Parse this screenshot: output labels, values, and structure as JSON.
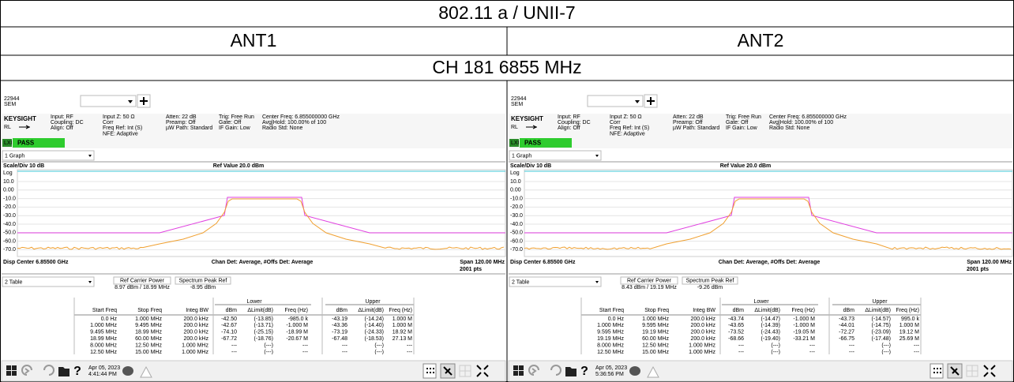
{
  "title": "802.11 a / UNII-7",
  "antennas": [
    "ANT1",
    "ANT2"
  ],
  "channel": "CH 181 6855 MHz",
  "panels": [
    {
      "screen_id": "22944",
      "mode": "SEM",
      "brand": "KEYSIGHT",
      "rl": "RL",
      "lxi": "LXI",
      "status": "PASS",
      "info": [
        [
          "Input: RF",
          "Coupling: DC",
          "Align: Off"
        ],
        [
          "Input Z: 50 Ω",
          "Corr",
          "Freq Ref: Int (S)",
          "NFE: Adaptive"
        ],
        [
          "Atten: 22 dB",
          "Preamp: Off",
          "µW Path: Standard"
        ],
        [
          "Trig: Free Run",
          "Gate: Off",
          "IF Gain: Low"
        ],
        [
          "Center Freq: 6.855000000 GHz",
          "Avg|Hold: 100.00% of 100",
          "Radio Std: None"
        ]
      ],
      "graph_menu": "1 Graph",
      "scale": "Scale/Div 10 dB",
      "ref_value": "Ref Value 20.0 dBm",
      "log": "Log",
      "y_axis": [
        "10.0",
        "0.00",
        "-10.0",
        "-20.0",
        "-30.0",
        "-40.0",
        "-50.0",
        "-60.0",
        "-70.0"
      ],
      "disp_center": "Disp Center 6.85500 GHz",
      "detector": "Chan Det: Average, #Offs Det: Average",
      "span": "Span 120.00 MHz",
      "points": "2001 pts",
      "table_menu": "2 Table",
      "ref_carrier_label": "Ref Carrier Power",
      "ref_carrier_value": "8.97 dBm / 18.99 MHz",
      "peak_ref_label": "Spectrum Peak Ref",
      "peak_ref_value": "-8.95 dBm",
      "table": {
        "groups": [
          "Lower",
          "Upper"
        ],
        "header": [
          "Start Freq",
          "Stop Freq",
          "Integ BW",
          "dBm",
          "ΔLimit(dB)",
          "Freq (Hz)",
          "dBm",
          "ΔLimit(dB)",
          "Freq (Hz)"
        ],
        "rows": [
          [
            "0.0 Hz",
            "1.000 MHz",
            "200.0 kHz",
            "-42.50",
            "(-13.85)",
            "-985.0 k",
            "-43.19",
            "(-14.24)",
            "1.000 M"
          ],
          [
            "1.000 MHz",
            "9.495 MHz",
            "200.0 kHz",
            "-42.67",
            "(-13.71)",
            "-1.000 M",
            "-43.36",
            "(-14.40)",
            "1.000 M"
          ],
          [
            "9.495 MHz",
            "18.99 MHz",
            "200.0 kHz",
            "-74.10",
            "(-25.15)",
            "-18.99 M",
            "-73.19",
            "(-24.33)",
            "18.92 M"
          ],
          [
            "18.99 MHz",
            "60.00 MHz",
            "200.0 kHz",
            "-67.72",
            "(-18.76)",
            "-20.67 M",
            "-67.48",
            "(-18.53)",
            "27.13 M"
          ],
          [
            "8.000 MHz",
            "12.50 MHz",
            "1.000 MHz",
            "---",
            "(---)",
            "---",
            "---",
            "(---)",
            "---"
          ],
          [
            "12.50 MHz",
            "15.00 MHz",
            "1.000 MHz",
            "---",
            "(---)",
            "---",
            "---",
            "(---)",
            "---"
          ]
        ]
      },
      "help": "?",
      "date": "Apr 05, 2023",
      "time": "4:41:44 PM"
    },
    {
      "screen_id": "22944",
      "mode": "SEM",
      "brand": "KEYSIGHT",
      "rl": "RL",
      "lxi": "LXI",
      "status": "PASS",
      "info": [
        [
          "Input: RF",
          "Coupling: DC",
          "Align: Off"
        ],
        [
          "Input Z: 50 Ω",
          "Corr",
          "Freq Ref: Int (S)",
          "NFE: Adaptive"
        ],
        [
          "Atten: 22 dB",
          "Preamp: Off",
          "µW Path: Standard"
        ],
        [
          "Trig: Free Run",
          "Gate: Off",
          "IF Gain: Low"
        ],
        [
          "Center Freq: 6.855000000 GHz",
          "Avg|Hold: 100.00% of 100",
          "Radio Std: None"
        ]
      ],
      "graph_menu": "1 Graph",
      "scale": "Scale/Div 10 dB",
      "ref_value": "Ref Value 20.0 dBm",
      "log": "Log",
      "y_axis": [
        "10.0",
        "0.00",
        "-10.0",
        "-20.0",
        "-30.0",
        "-40.0",
        "-50.0",
        "-60.0",
        "-70.0"
      ],
      "disp_center": "Disp Center 6.85500 GHz",
      "detector": "Chan Det: Average, #Offs Det: Average",
      "span": "Span 120.00 MHz",
      "points": "2001 pts",
      "table_menu": "2 Table",
      "ref_carrier_label": "Ref Carrier Power",
      "ref_carrier_value": "8.43 dBm / 19.19 MHz",
      "peak_ref_label": "Spectrum Peak Ref",
      "peak_ref_value": "-9.26 dBm",
      "table": {
        "groups": [
          "Lower",
          "Upper"
        ],
        "header": [
          "Start Freq",
          "Stop Freq",
          "Integ BW",
          "dBm",
          "ΔLimit(dB)",
          "Freq (Hz)",
          "dBm",
          "ΔLimit(dB)",
          "Freq (Hz)"
        ],
        "rows": [
          [
            "0.0 Hz",
            "1.000 MHz",
            "200.0 kHz",
            "-43.74",
            "(-14.47)",
            "-1.000 M",
            "-43.73",
            "(-14.57)",
            "995.0 k"
          ],
          [
            "1.000 MHz",
            "9.595 MHz",
            "200.0 kHz",
            "-43.65",
            "(-14.39)",
            "-1.000 M",
            "-44.01",
            "(-14.75)",
            "1.000 M"
          ],
          [
            "9.595 MHz",
            "19.19 MHz",
            "200.0 kHz",
            "-73.52",
            "(-24.43)",
            "-19.05 M",
            "-72.27",
            "(-23.09)",
            "19.12 M"
          ],
          [
            "19.19 MHz",
            "60.00 MHz",
            "200.0 kHz",
            "-68.66",
            "(-19.40)",
            "-33.21 M",
            "-66.75",
            "(-17.48)",
            "25.69 M"
          ],
          [
            "8.000 MHz",
            "12.50 MHz",
            "1.000 MHz",
            "---",
            "(---)",
            "---",
            "---",
            "(---)",
            "---"
          ],
          [
            "12.50 MHz",
            "15.00 MHz",
            "1.000 MHz",
            "---",
            "(---)",
            "---",
            "---",
            "(---)",
            "---"
          ]
        ]
      },
      "help": "?",
      "date": "Apr 05, 2023",
      "time": "5:36:56 PM"
    }
  ]
}
